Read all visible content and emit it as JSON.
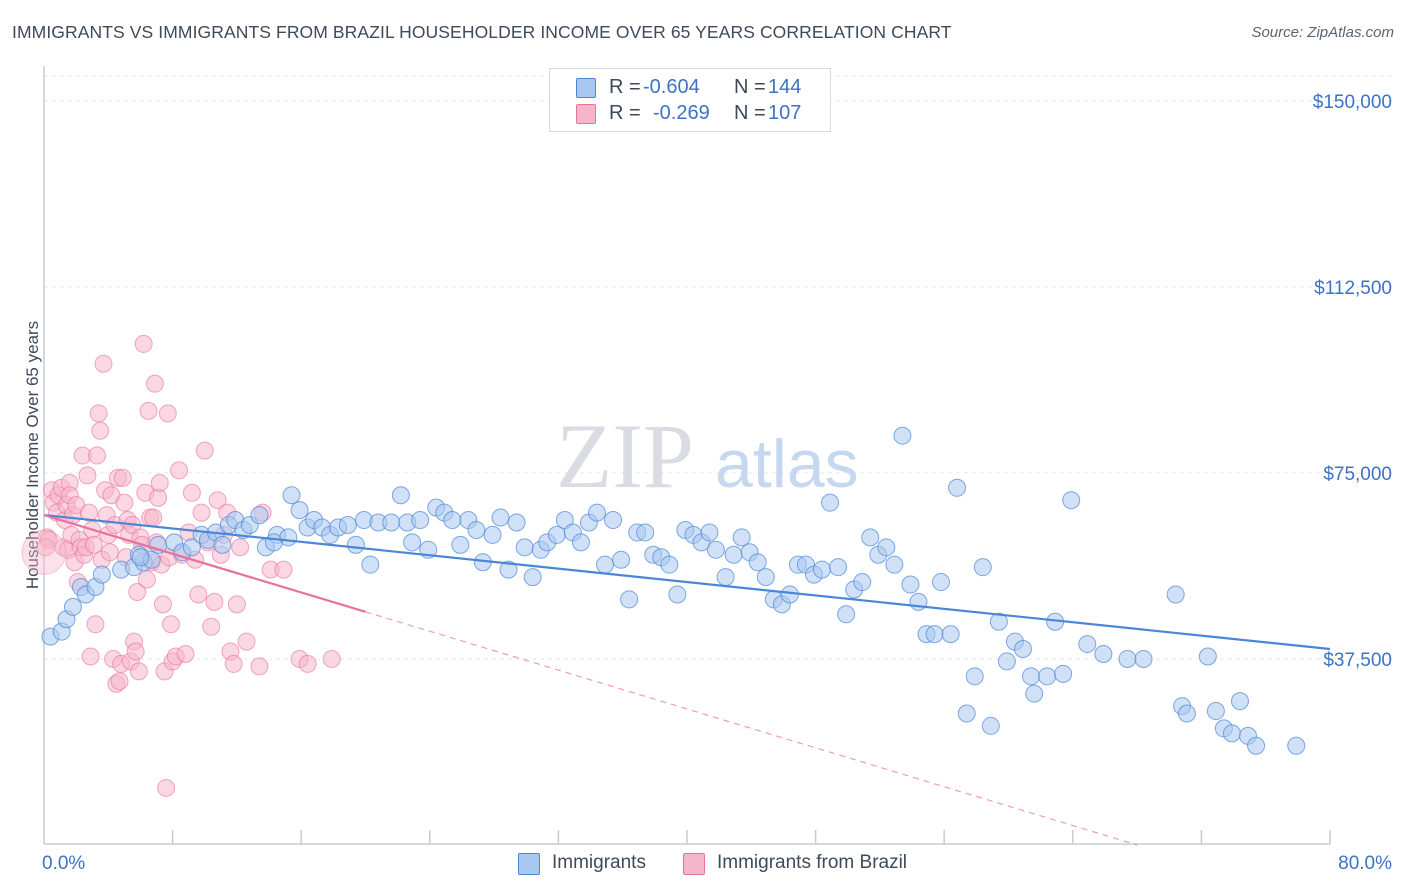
{
  "header": {
    "title": "IMMIGRANTS VS IMMIGRANTS FROM BRAZIL HOUSEHOLDER INCOME OVER 65 YEARS CORRELATION CHART",
    "source": "Source: ZipAtlas.com"
  },
  "watermark": {
    "zip": "ZIP",
    "atlas": "atlas"
  },
  "legend": {
    "rows": [
      {
        "r_label": "R =",
        "r_value": "-0.604",
        "n_label": "N =",
        "n_value": "144"
      },
      {
        "r_label": "R =",
        "r_value": "-0.269",
        "n_label": "N =",
        "n_value": "107"
      }
    ]
  },
  "colors": {
    "blue": "#4a86d8",
    "blue_fill": "#a9c8f0",
    "pink": "#e8729a",
    "pink_fill": "#f6b6ca",
    "tick_text": "#3d72c4",
    "grid": "#e3e6ea"
  },
  "chart_data": {
    "type": "scatter",
    "title": "IMMIGRANTS VS IMMIGRANTS FROM BRAZIL HOUSEHOLDER INCOME OVER 65 YEARS CORRELATION CHART",
    "xlabel": "",
    "ylabel": "Householder Income Over 65 years",
    "xlim": [
      0,
      80
    ],
    "ylim": [
      0,
      155000
    ],
    "x_tick_labels": [
      "0.0%",
      "80.0%"
    ],
    "y_ticks": [
      37500,
      75000,
      112500,
      150000
    ],
    "y_tick_labels": [
      "$37,500",
      "$75,000",
      "$112,500",
      "$150,000"
    ],
    "grid": "horizontal dashed",
    "legend_position": "top-center",
    "series": [
      {
        "name": "Immigrants",
        "color": "#4a86d8",
        "trend": {
          "x": [
            0,
            80
          ],
          "y": [
            66500,
            39500
          ]
        },
        "points": [
          [
            0.4,
            42000
          ],
          [
            1.1,
            43000
          ],
          [
            1.4,
            45500
          ],
          [
            1.8,
            48000
          ],
          [
            2.3,
            52000
          ],
          [
            2.6,
            50500
          ],
          [
            3.2,
            52000
          ],
          [
            3.6,
            54500
          ],
          [
            4.8,
            55500
          ],
          [
            5.6,
            56000
          ],
          [
            6.2,
            57000
          ],
          [
            5.9,
            58500
          ],
          [
            6.7,
            57500
          ],
          [
            7.1,
            60500
          ],
          [
            8.1,
            61000
          ],
          [
            8.6,
            59000
          ],
          [
            9.2,
            60000
          ],
          [
            9.8,
            62500
          ],
          [
            10.2,
            61500
          ],
          [
            10.7,
            63000
          ],
          [
            11.1,
            60500
          ],
          [
            11.5,
            64500
          ],
          [
            11.9,
            65500
          ],
          [
            12.4,
            63500
          ],
          [
            12.8,
            64500
          ],
          [
            13.4,
            66500
          ],
          [
            13.8,
            60000
          ],
          [
            14.5,
            62500
          ],
          [
            14.3,
            61000
          ],
          [
            15.2,
            62000
          ],
          [
            15.4,
            70500
          ],
          [
            15.9,
            67500
          ],
          [
            16.4,
            64000
          ],
          [
            16.8,
            65500
          ],
          [
            17.3,
            64000
          ],
          [
            17.8,
            62500
          ],
          [
            18.3,
            64000
          ],
          [
            18.9,
            64500
          ],
          [
            19.4,
            60500
          ],
          [
            19.9,
            65500
          ],
          [
            20.3,
            56500
          ],
          [
            20.8,
            65000
          ],
          [
            21.6,
            65000
          ],
          [
            22.2,
            70500
          ],
          [
            22.6,
            65000
          ],
          [
            22.9,
            61000
          ],
          [
            23.4,
            65500
          ],
          [
            23.9,
            59500
          ],
          [
            24.4,
            68000
          ],
          [
            24.9,
            67000
          ],
          [
            25.4,
            65500
          ],
          [
            25.9,
            60500
          ],
          [
            26.4,
            65500
          ],
          [
            26.9,
            63500
          ],
          [
            27.3,
            57000
          ],
          [
            27.9,
            62500
          ],
          [
            28.4,
            66000
          ],
          [
            28.9,
            55500
          ],
          [
            29.4,
            65000
          ],
          [
            29.9,
            60000
          ],
          [
            30.4,
            54000
          ],
          [
            30.9,
            59500
          ],
          [
            31.3,
            61000
          ],
          [
            31.9,
            62500
          ],
          [
            32.4,
            65500
          ],
          [
            32.9,
            63000
          ],
          [
            33.4,
            61000
          ],
          [
            33.9,
            65000
          ],
          [
            34.4,
            67000
          ],
          [
            34.9,
            56500
          ],
          [
            35.4,
            65500
          ],
          [
            35.9,
            57500
          ],
          [
            36.4,
            49500
          ],
          [
            36.9,
            63000
          ],
          [
            37.4,
            63000
          ],
          [
            37.9,
            58500
          ],
          [
            38.4,
            58000
          ],
          [
            38.9,
            56500
          ],
          [
            39.4,
            50500
          ],
          [
            39.9,
            63500
          ],
          [
            40.4,
            62500
          ],
          [
            40.9,
            61000
          ],
          [
            41.4,
            63000
          ],
          [
            41.8,
            59500
          ],
          [
            42.4,
            54000
          ],
          [
            42.9,
            58500
          ],
          [
            43.4,
            62000
          ],
          [
            43.9,
            59000
          ],
          [
            44.4,
            57000
          ],
          [
            44.9,
            54000
          ],
          [
            45.4,
            49500
          ],
          [
            45.9,
            48500
          ],
          [
            46.4,
            50500
          ],
          [
            46.9,
            56500
          ],
          [
            47.4,
            56500
          ],
          [
            47.9,
            54500
          ],
          [
            48.4,
            55500
          ],
          [
            48.9,
            69000
          ],
          [
            49.4,
            56000
          ],
          [
            49.9,
            46500
          ],
          [
            50.4,
            51500
          ],
          [
            50.9,
            53000
          ],
          [
            51.4,
            62000
          ],
          [
            51.9,
            58500
          ],
          [
            52.4,
            60000
          ],
          [
            52.9,
            56500
          ],
          [
            53.4,
            82500
          ],
          [
            53.9,
            52500
          ],
          [
            54.4,
            49000
          ],
          [
            54.9,
            42500
          ],
          [
            55.4,
            42500
          ],
          [
            55.8,
            53000
          ],
          [
            56.4,
            42500
          ],
          [
            56.8,
            72000
          ],
          [
            57.4,
            26500
          ],
          [
            57.9,
            34000
          ],
          [
            58.4,
            56000
          ],
          [
            58.9,
            24000
          ],
          [
            59.4,
            45000
          ],
          [
            59.9,
            37000
          ],
          [
            60.4,
            41000
          ],
          [
            60.9,
            39500
          ],
          [
            61.4,
            34000
          ],
          [
            61.6,
            30500
          ],
          [
            62.4,
            34000
          ],
          [
            62.9,
            45000
          ],
          [
            63.4,
            34500
          ],
          [
            63.9,
            69500
          ],
          [
            64.9,
            40500
          ],
          [
            65.9,
            38500
          ],
          [
            67.4,
            37500
          ],
          [
            68.4,
            37500
          ],
          [
            70.4,
            50500
          ],
          [
            70.8,
            28000
          ],
          [
            71.1,
            26500
          ],
          [
            72.4,
            38000
          ],
          [
            72.9,
            27000
          ],
          [
            73.4,
            23500
          ],
          [
            73.9,
            22500
          ],
          [
            74.4,
            29000
          ],
          [
            74.9,
            22000
          ],
          [
            75.4,
            20000
          ],
          [
            77.9,
            20000
          ],
          [
            6.0,
            58000
          ]
        ]
      },
      {
        "name": "Immigrants from Brazil",
        "color": "#e8729a",
        "trend": {
          "x": [
            0,
            20
          ],
          "y": [
            66500,
            47000
          ]
        },
        "trend_extension": {
          "x": [
            20,
            68
          ],
          "y": [
            47000,
            0
          ]
        },
        "points": [
          [
            0.2,
            62000
          ],
          [
            0.3,
            61500
          ],
          [
            0.5,
            71500
          ],
          [
            0.6,
            69000
          ],
          [
            0.8,
            67000
          ],
          [
            0.9,
            70500
          ],
          [
            1.1,
            72000
          ],
          [
            1.2,
            60000
          ],
          [
            1.3,
            65500
          ],
          [
            1.4,
            68500
          ],
          [
            1.5,
            59500
          ],
          [
            1.6,
            73000
          ],
          [
            1.6,
            70500
          ],
          [
            1.7,
            62500
          ],
          [
            1.8,
            66500
          ],
          [
            1.9,
            57000
          ],
          [
            2.0,
            68500
          ],
          [
            2.1,
            53000
          ],
          [
            2.2,
            61500
          ],
          [
            2.3,
            60000
          ],
          [
            2.4,
            78500
          ],
          [
            2.5,
            58500
          ],
          [
            2.6,
            60000
          ],
          [
            2.7,
            74500
          ],
          [
            2.8,
            67000
          ],
          [
            2.9,
            38000
          ],
          [
            3.0,
            63500
          ],
          [
            3.1,
            60500
          ],
          [
            3.2,
            44500
          ],
          [
            3.3,
            78500
          ],
          [
            3.4,
            87000
          ],
          [
            3.5,
            83500
          ],
          [
            3.6,
            57500
          ],
          [
            3.7,
            97000
          ],
          [
            3.8,
            71500
          ],
          [
            3.9,
            66500
          ],
          [
            4.0,
            62500
          ],
          [
            4.1,
            59000
          ],
          [
            4.2,
            70500
          ],
          [
            4.3,
            37500
          ],
          [
            4.4,
            64500
          ],
          [
            4.5,
            32500
          ],
          [
            4.6,
            74000
          ],
          [
            4.7,
            33000
          ],
          [
            4.8,
            36500
          ],
          [
            4.9,
            74000
          ],
          [
            5.0,
            69000
          ],
          [
            5.1,
            58000
          ],
          [
            5.2,
            65500
          ],
          [
            5.3,
            62500
          ],
          [
            5.4,
            37000
          ],
          [
            5.5,
            64500
          ],
          [
            5.6,
            41000
          ],
          [
            5.7,
            39000
          ],
          [
            5.8,
            51000
          ],
          [
            5.9,
            35000
          ],
          [
            6.0,
            62000
          ],
          [
            6.1,
            60500
          ],
          [
            6.2,
            101000
          ],
          [
            6.3,
            71000
          ],
          [
            6.4,
            53500
          ],
          [
            6.5,
            87500
          ],
          [
            6.6,
            66000
          ],
          [
            6.7,
            57000
          ],
          [
            6.8,
            66000
          ],
          [
            6.9,
            93000
          ],
          [
            7.0,
            61000
          ],
          [
            7.1,
            70000
          ],
          [
            7.2,
            73000
          ],
          [
            7.3,
            56500
          ],
          [
            7.4,
            48500
          ],
          [
            7.5,
            35000
          ],
          [
            7.6,
            11500
          ],
          [
            7.7,
            87000
          ],
          [
            7.8,
            58000
          ],
          [
            7.9,
            44500
          ],
          [
            8.0,
            37000
          ],
          [
            8.2,
            38000
          ],
          [
            8.4,
            75500
          ],
          [
            8.6,
            58500
          ],
          [
            8.8,
            38500
          ],
          [
            9.0,
            63000
          ],
          [
            9.2,
            71000
          ],
          [
            9.4,
            57500
          ],
          [
            9.6,
            50500
          ],
          [
            9.8,
            67000
          ],
          [
            10.0,
            79500
          ],
          [
            10.2,
            61000
          ],
          [
            10.4,
            44000
          ],
          [
            10.6,
            49000
          ],
          [
            10.8,
            69500
          ],
          [
            11.0,
            58500
          ],
          [
            11.2,
            62500
          ],
          [
            11.4,
            67000
          ],
          [
            11.6,
            39000
          ],
          [
            11.8,
            36500
          ],
          [
            12.0,
            48500
          ],
          [
            12.2,
            60000
          ],
          [
            12.6,
            41000
          ],
          [
            13.4,
            36000
          ],
          [
            13.6,
            67000
          ],
          [
            14.1,
            55500
          ],
          [
            14.9,
            55500
          ],
          [
            15.9,
            37500
          ],
          [
            16.4,
            36500
          ],
          [
            17.9,
            37500
          ],
          [
            0.1,
            60000
          ]
        ]
      }
    ]
  },
  "bottom_legend": {
    "items": [
      {
        "label": "Immigrants"
      },
      {
        "label": "Immigrants from Brazil"
      }
    ]
  }
}
